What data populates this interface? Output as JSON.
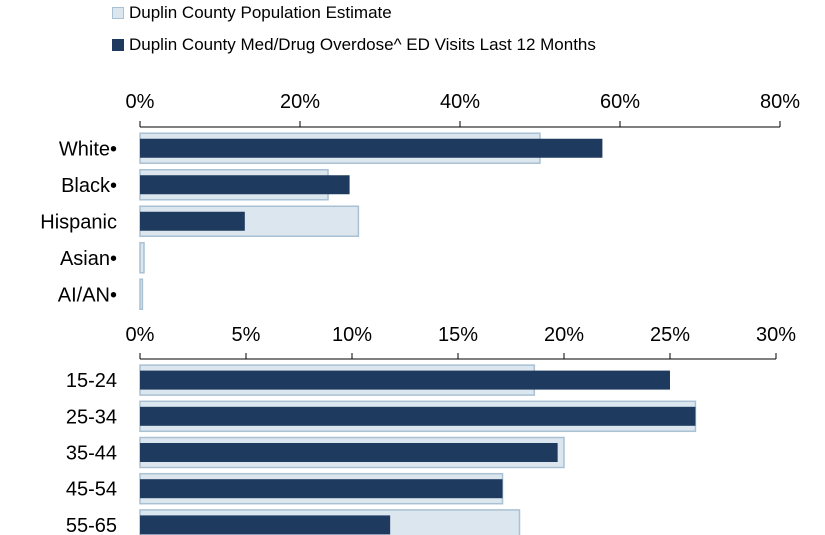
{
  "legend": {
    "population_label": "Duplin County Population Estimate",
    "ed_visits_label": "Duplin County Med/Drug Overdose^ ED Visits Last 12 Months"
  },
  "colors": {
    "population_fill": "#dce6ee",
    "population_stroke": "#a9c1d3",
    "ed_visits": "#1f3a5f",
    "axis": "#000000"
  },
  "chart_data": [
    {
      "type": "bar",
      "orientation": "horizontal",
      "categories": [
        "White•",
        "Black•",
        "Hispanic",
        "Asian•",
        "AI/AN•"
      ],
      "series": [
        {
          "name": "Duplin County Population Estimate",
          "values": [
            50,
            23.5,
            27.3,
            0.5,
            0.3
          ]
        },
        {
          "name": "Duplin County Med/Drug Overdose^ ED Visits Last 12 Months",
          "values": [
            57.8,
            26.2,
            13.1,
            0,
            0
          ]
        }
      ],
      "xlim": [
        0,
        80
      ],
      "ticks": [
        "0%",
        "20%",
        "40%",
        "60%",
        "80%"
      ]
    },
    {
      "type": "bar",
      "orientation": "horizontal",
      "categories": [
        "15-24",
        "25-34",
        "35-44",
        "45-54",
        "55-65"
      ],
      "series": [
        {
          "name": "Duplin County Population Estimate",
          "values": [
            18.6,
            26.2,
            20.0,
            17.1,
            17.9
          ]
        },
        {
          "name": "Duplin County Med/Drug Overdose^ ED Visits Last 12 Months",
          "values": [
            25.0,
            26.2,
            19.7,
            17.1,
            11.8
          ]
        }
      ],
      "xlim": [
        0,
        30
      ],
      "ticks": [
        "0%",
        "5%",
        "10%",
        "15%",
        "20%",
        "25%",
        "30%"
      ]
    }
  ]
}
